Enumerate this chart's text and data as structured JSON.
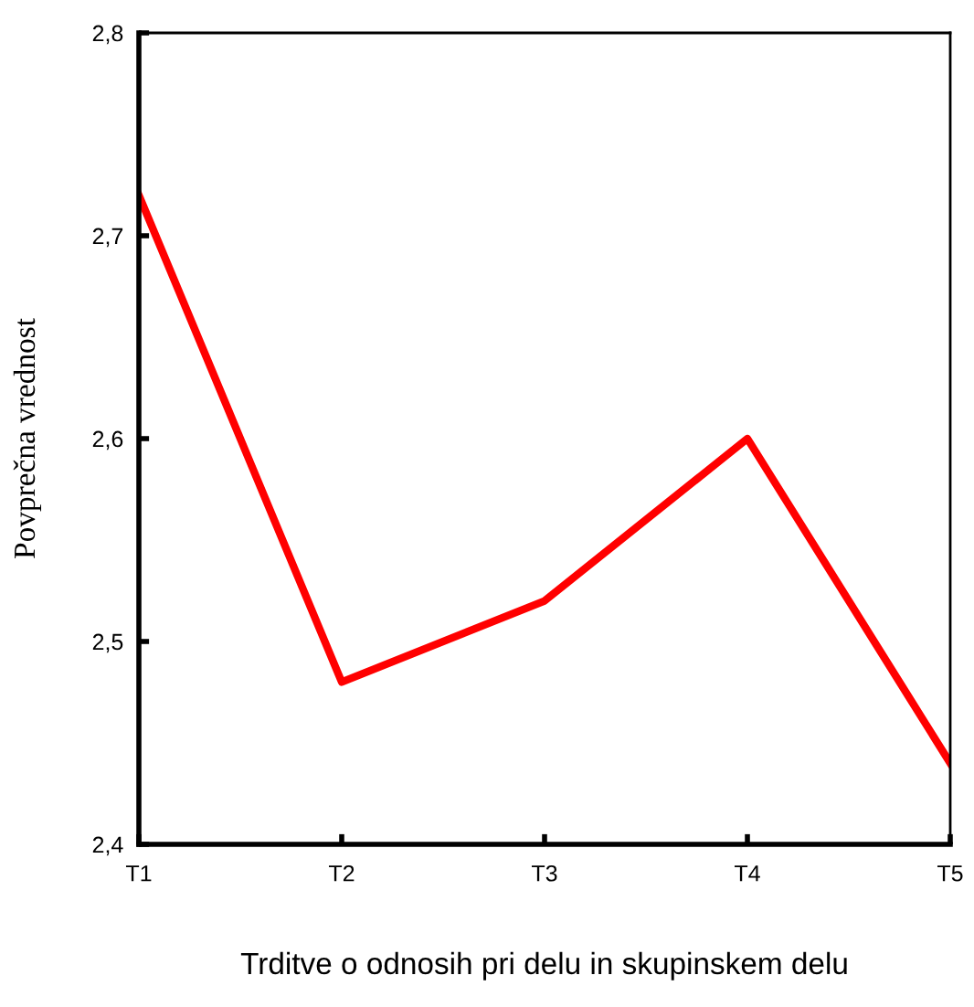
{
  "chart_data": {
    "type": "line",
    "xlabel": "Trditve o odnosih pri delu in skupinskem delu",
    "ylabel": "Povprečna vrednost",
    "categories": [
      "T1",
      "T2",
      "T3",
      "T4",
      "T5"
    ],
    "series": [
      {
        "color": "#ff0000",
        "values": [
          2.72,
          2.48,
          2.52,
          2.6,
          2.44
        ]
      }
    ],
    "ylim": [
      2.4,
      2.8
    ],
    "yticks": [
      {
        "value": 2.4,
        "label": "2,4"
      },
      {
        "value": 2.5,
        "label": "2,5"
      },
      {
        "value": 2.6,
        "label": "2,6"
      },
      {
        "value": 2.7,
        "label": "2,7"
      },
      {
        "value": 2.8,
        "label": "2,8"
      }
    ],
    "grid": false,
    "marker": "none",
    "line_style": "solid"
  }
}
